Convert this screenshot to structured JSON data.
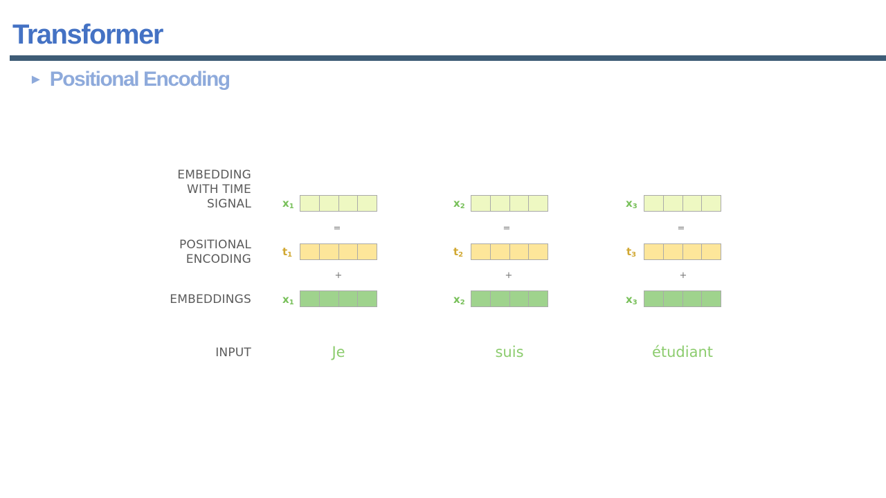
{
  "header": {
    "title": "Transformer",
    "subtitle_bullet": "►",
    "subtitle": "Positional Encoding"
  },
  "diagram": {
    "row_labels": {
      "signal": "EMBEDDING\nWITH TIME\nSIGNAL",
      "positional": "POSITIONAL\nENCODING",
      "embeddings": "EMBEDDINGS",
      "input": "INPUT"
    },
    "operators": {
      "equals": "=",
      "plus": "+"
    },
    "columns": [
      {
        "x_sym": "x",
        "t_sym": "t",
        "index": "1",
        "word": "Je"
      },
      {
        "x_sym": "x",
        "t_sym": "t",
        "index": "2",
        "word": "suis"
      },
      {
        "x_sym": "x",
        "t_sym": "t",
        "index": "3",
        "word": "étudiant"
      }
    ]
  },
  "colors": {
    "title": "#4472c4",
    "subtitle": "#8eaadb",
    "rule": "#3e5c76",
    "signal_cell": "#eef8c2",
    "posenc_cell": "#fde69a",
    "embed_cell": "#9fd38d",
    "green_text": "#78c05a",
    "gold_text": "#d1a833"
  },
  "icons": {
    "bullet": "triangle-right-icon"
  }
}
